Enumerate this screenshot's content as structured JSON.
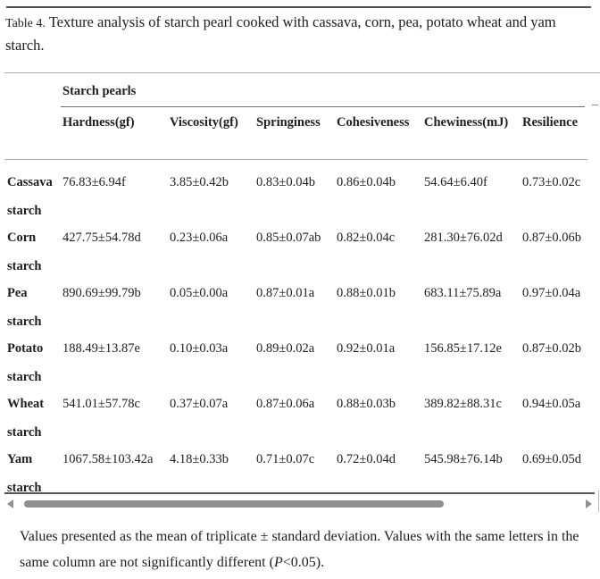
{
  "caption": {
    "label": "Table 4.",
    "text": " Texture analysis of starch pearl cooked with cassava, corn, pea, potato wheat and yam starch."
  },
  "table": {
    "group_header": "Starch pearls",
    "columns": [
      "Hardness(gf)",
      "Viscosity(gf)",
      "Springiness",
      "Cohesiveness",
      "Chewiness(mJ)",
      "Resilience"
    ],
    "rows": [
      {
        "label": "Cassava starch",
        "values": [
          "76.83±6.94f",
          "3.85±0.42b",
          "0.83±0.04b",
          "0.86±0.04b",
          "54.64±6.40f",
          "0.73±0.02c"
        ]
      },
      {
        "label": "Corn starch",
        "values": [
          "427.75±54.78d",
          "0.23±0.06a",
          "0.85±0.07ab",
          "0.82±0.04c",
          "281.30±76.02d",
          "0.87±0.06b"
        ]
      },
      {
        "label": "Pea starch",
        "values": [
          "890.69±99.79b",
          "0.05±0.00a",
          "0.87±0.01a",
          "0.88±0.01b",
          "683.11±75.89a",
          "0.97±0.04a"
        ]
      },
      {
        "label": "Potato starch",
        "values": [
          "188.49±13.87e",
          "0.10±0.03a",
          "0.89±0.02a",
          "0.92±0.01a",
          "156.85±17.12e",
          "0.87±0.02b"
        ]
      },
      {
        "label": "Wheat starch",
        "values": [
          "541.01±57.78c",
          "0.37±0.07a",
          "0.87±0.06a",
          "0.88±0.03b",
          "389.82±88.31c",
          "0.94±0.05a"
        ]
      },
      {
        "label": "Yam starch",
        "values": [
          "1067.58±103.42a",
          "4.18±0.33b",
          "0.71±0.07c",
          "0.72±0.04d",
          "545.98±76.14b",
          "0.69±0.05d"
        ]
      }
    ]
  },
  "footnote": {
    "part1": "Values presented as the mean of triplicate ± standard deviation. Values with the same letters in the same column are not significantly different (",
    "p_symbol": "P",
    "part2": "<0.05)."
  },
  "scrollbar": {
    "left_arrow_icon": "left-triangle",
    "right_arrow_icon": "right-triangle"
  },
  "colors": {
    "text": "#1e1e1e",
    "rule_dark": "#4d4d4d",
    "rule_light": "#ababab",
    "rule_mid": "#6e6e6e",
    "scrollbar_gray": "#8f8f8f"
  }
}
